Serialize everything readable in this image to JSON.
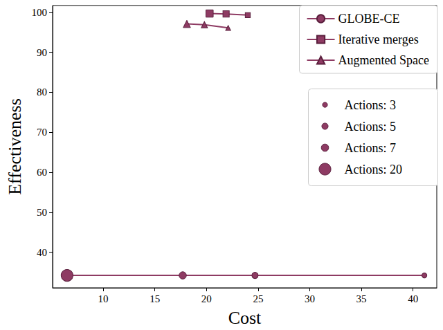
{
  "chart_data": {
    "type": "line",
    "x_label": "Cost",
    "y_label": "Effectiveness",
    "xlim": [
      5.1,
      42.3
    ],
    "xticks": [
      10,
      15,
      20,
      25,
      30,
      35,
      40
    ],
    "ylim": [
      31.1,
      101.7
    ],
    "yticks": [
      40,
      50,
      60,
      70,
      80,
      90,
      100
    ],
    "grid": false,
    "legend": "upper right",
    "color": "#8e3b63",
    "series": [
      {
        "name": "GLOBE-CE",
        "marker": "circle",
        "x": [
          6.5,
          17.7,
          24.7,
          41.1
        ],
        "values": [
          34.2,
          34.2,
          34.2,
          34.2
        ],
        "sizes": [
          20,
          7,
          5,
          3
        ]
      },
      {
        "name": "Iterative merges",
        "marker": "square",
        "x": [
          20.3,
          21.9,
          24.0
        ],
        "values": [
          99.7,
          99.6,
          99.3
        ],
        "sizes": [
          7,
          5,
          3
        ]
      },
      {
        "name": "Augmented Space",
        "marker": "triangle",
        "x": [
          18.1,
          19.8,
          22.1
        ],
        "values": [
          97.1,
          96.9,
          96.1
        ],
        "sizes": [
          7,
          5,
          3
        ]
      }
    ],
    "size_legend": [
      {
        "value": 3,
        "label": "Actions: 3"
      },
      {
        "value": 5,
        "label": "Actions: 5"
      },
      {
        "value": 7,
        "label": "Actions: 7"
      },
      {
        "value": 20,
        "label": "Actions: 20"
      }
    ]
  }
}
